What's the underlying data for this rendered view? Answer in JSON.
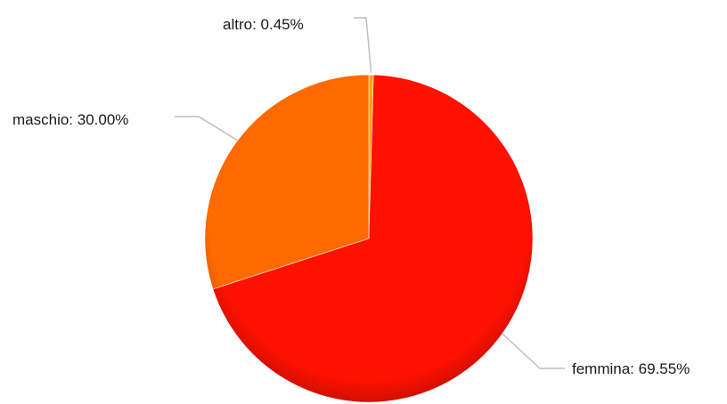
{
  "chart_data": {
    "type": "pie",
    "title": "",
    "legend": "none",
    "slices": [
      {
        "label": "altro",
        "value": 0.45,
        "display": "altro: 0.45%",
        "color": "#ffa500"
      },
      {
        "label": "femmina",
        "value": 69.55,
        "display": "femmina: 69.55%",
        "color": "#ff1100"
      },
      {
        "label": "maschio",
        "value": 30.0,
        "display": "maschio: 30.00%",
        "color": "#ff6a00"
      }
    ]
  }
}
